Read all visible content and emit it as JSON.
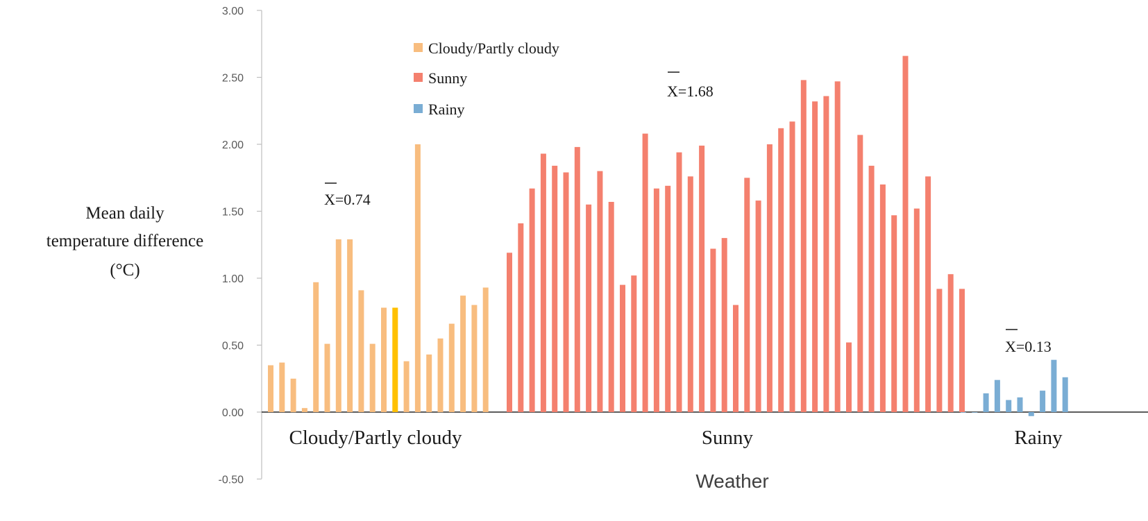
{
  "chart_data": {
    "type": "bar",
    "xlabel": "Weather",
    "ylabel_lines": [
      "Mean daily",
      "temperature difference",
      "(°C)"
    ],
    "ylim": [
      -0.5,
      3.0
    ],
    "yticks": [
      "3.00",
      "2.50",
      "2.00",
      "1.50",
      "1.00",
      "0.50",
      "0.00",
      "-0.50"
    ],
    "grid": false,
    "legend_position": "top-left",
    "series": [
      {
        "name": "Cloudy/Partly cloudy",
        "category_label": "Cloudy/Partly cloudy",
        "color": "#F8BD7F",
        "highlight_color": "#FFC000",
        "highlight_index": 11,
        "mean_label": "X=0.74",
        "values": [
          0.35,
          0.37,
          0.25,
          0.03,
          0.97,
          0.51,
          1.29,
          1.29,
          0.91,
          0.51,
          0.78,
          0.78,
          0.38,
          2.0,
          0.43,
          0.55,
          0.66,
          0.87,
          0.8,
          0.93
        ]
      },
      {
        "name": "Sunny",
        "category_label": "Sunny",
        "color": "#F4806E",
        "mean_label": "X=1.68",
        "values": [
          1.19,
          1.41,
          1.67,
          1.93,
          1.84,
          1.79,
          1.98,
          1.55,
          1.8,
          1.57,
          0.95,
          1.02,
          2.08,
          1.67,
          1.69,
          1.94,
          1.76,
          1.99,
          1.22,
          1.3,
          0.8,
          1.75,
          1.58,
          2.0,
          2.12,
          2.17,
          2.48,
          2.32,
          2.36,
          2.47,
          0.52,
          2.07,
          1.84,
          1.7,
          1.47,
          2.66,
          1.52,
          1.76,
          0.92,
          1.03,
          0.92
        ]
      },
      {
        "name": "Rainy",
        "category_label": "Rainy",
        "color": "#7AADD4",
        "mean_label": "X=0.13",
        "values": [
          0.0,
          0.0,
          0.14,
          0.24,
          0.09,
          0.11,
          -0.03,
          0.16,
          0.39,
          0.26
        ]
      }
    ]
  }
}
